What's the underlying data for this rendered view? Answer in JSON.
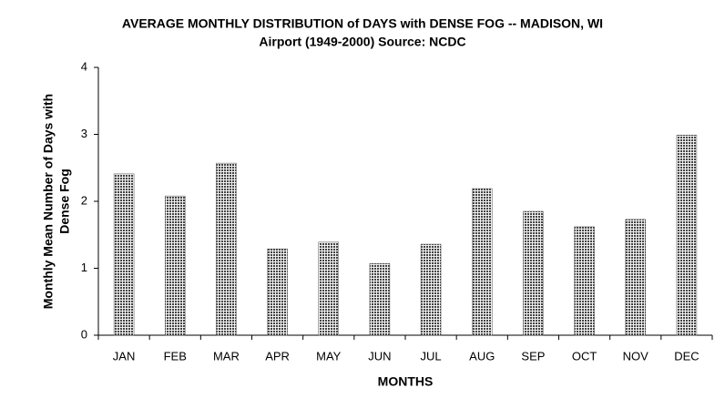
{
  "chart_data": {
    "type": "bar",
    "title": [
      "AVERAGE MONTHLY DISTRIBUTION of DAYS with DENSE FOG -- MADISON, WI",
      "Airport (1949-2000) Source: NCDC"
    ],
    "x_label": "MONTHS",
    "y_label": [
      "Monthly Mean Number of Days with",
      "Dense Fog"
    ],
    "categories": [
      "JAN",
      "FEB",
      "MAR",
      "APR",
      "MAY",
      "JUN",
      "JUL",
      "AUG",
      "SEP",
      "OCT",
      "NOV",
      "DEC"
    ],
    "values": [
      2.41,
      2.08,
      2.57,
      1.29,
      1.39,
      1.07,
      1.36,
      2.19,
      1.85,
      1.62,
      1.73,
      2.99
    ],
    "color": "#555555",
    "ylim": [
      0,
      4
    ],
    "yticks": [
      0,
      1,
      2,
      3,
      4
    ],
    "grid": false
  }
}
